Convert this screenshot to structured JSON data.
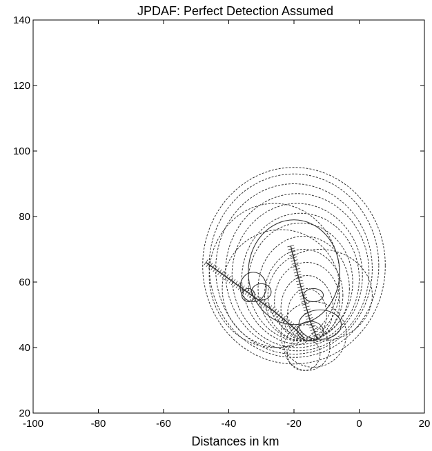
{
  "chart_data": {
    "type": "line",
    "title": "JPDAF: Perfect Detection Assumed",
    "xlabel": "Distances in km",
    "ylabel": "",
    "xlim": [
      -100,
      20
    ],
    "ylim": [
      20,
      140
    ],
    "xticks": [
      -100,
      -80,
      -60,
      -40,
      -20,
      0,
      20
    ],
    "yticks": [
      20,
      40,
      60,
      80,
      100,
      120,
      140
    ],
    "xtick_labels": [
      "-100",
      "-80",
      "-60",
      "-40",
      "-20",
      "0",
      "20"
    ],
    "ytick_labels": [
      "20",
      "40",
      "60",
      "80",
      "100",
      "120",
      "140"
    ],
    "grid": false,
    "series": [
      {
        "style": "dashed",
        "kind": "circles",
        "color": "#333333",
        "circles": [
          {
            "cx": -20,
            "cy": 65,
            "rx": 28,
            "ry": 30
          },
          {
            "cx": -20,
            "cy": 65,
            "rx": 26,
            "ry": 28
          },
          {
            "cx": -20,
            "cy": 64,
            "rx": 24,
            "ry": 26
          },
          {
            "cx": -19,
            "cy": 63,
            "rx": 22,
            "ry": 24
          },
          {
            "cx": -19,
            "cy": 62,
            "rx": 20,
            "ry": 22
          },
          {
            "cx": -18,
            "cy": 61,
            "rx": 18,
            "ry": 20
          },
          {
            "cx": -18,
            "cy": 60,
            "rx": 16,
            "ry": 18
          },
          {
            "cx": -17,
            "cy": 58,
            "rx": 14,
            "ry": 16
          },
          {
            "cx": -17,
            "cy": 56,
            "rx": 12,
            "ry": 14
          },
          {
            "cx": -16,
            "cy": 54,
            "rx": 10,
            "ry": 12
          },
          {
            "cx": -16,
            "cy": 52,
            "rx": 8,
            "ry": 10
          },
          {
            "cx": -16,
            "cy": 50,
            "rx": 6,
            "ry": 8
          },
          {
            "cx": -26,
            "cy": 62,
            "rx": 20,
            "ry": 22
          },
          {
            "cx": -24,
            "cy": 58,
            "rx": 18,
            "ry": 18
          },
          {
            "cx": -14,
            "cy": 44,
            "rx": 10,
            "ry": 10
          },
          {
            "cx": -16,
            "cy": 40,
            "rx": 7,
            "ry": 7
          },
          {
            "cx": -17,
            "cy": 38,
            "rx": 5,
            "ry": 5
          },
          {
            "cx": -12,
            "cy": 56,
            "rx": 16,
            "ry": 14
          }
        ]
      },
      {
        "style": "solid",
        "kind": "ellipses",
        "color": "#333333",
        "ellipses": [
          {
            "cx": -32.5,
            "cy": 58.5,
            "rx": 4,
            "ry": 4.5
          },
          {
            "cx": -30,
            "cy": 57,
            "rx": 3,
            "ry": 2.5
          },
          {
            "cx": -34,
            "cy": 56,
            "rx": 2,
            "ry": 2
          },
          {
            "cx": -14,
            "cy": 56,
            "rx": 3,
            "ry": 2
          },
          {
            "cx": -12,
            "cy": 47,
            "rx": 6.5,
            "ry": 4.5
          },
          {
            "cx": -15,
            "cy": 45,
            "rx": 4,
            "ry": 3
          },
          {
            "cx": -20,
            "cy": 63,
            "rx": 14,
            "ry": 16
          }
        ]
      },
      {
        "style": "solid",
        "kind": "tracks",
        "color": "#333333",
        "tracks": [
          {
            "x": [
              -47,
              -40,
              -33,
              -26,
              -20,
              -17
            ],
            "y": [
              66,
              61,
              56,
              51,
              46,
              43
            ]
          },
          {
            "x": [
              -21,
              -19,
              -17,
              -15,
              -13
            ],
            "y": [
              71,
              63,
              55,
              48,
              43
            ]
          }
        ]
      }
    ]
  }
}
